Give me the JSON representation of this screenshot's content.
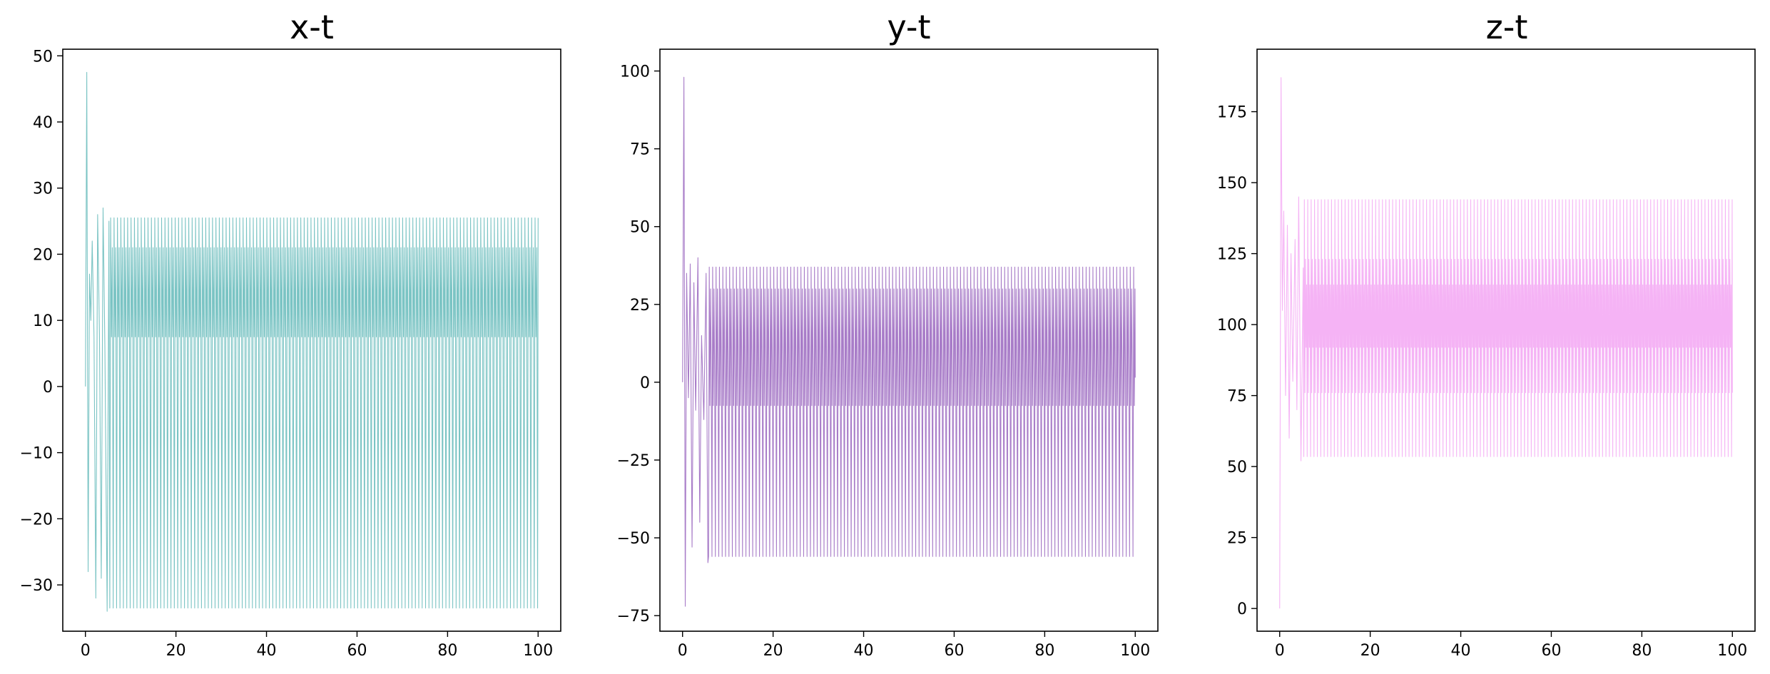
{
  "figure": {
    "panels": [
      {
        "title": "x-t"
      },
      {
        "title": "y-t"
      },
      {
        "title": "z-t"
      }
    ]
  },
  "chart_data": [
    {
      "type": "line",
      "title": "x-t",
      "xlabel": "",
      "ylabel": "",
      "color": "#7bc4c4",
      "xlim": [
        -5,
        105
      ],
      "ylim": [
        -37,
        51
      ],
      "xticks": [
        0,
        20,
        40,
        60,
        80,
        100
      ],
      "yticks": [
        -30,
        -20,
        -10,
        0,
        10,
        20,
        30,
        40,
        50
      ],
      "grid": false,
      "legend": "none",
      "signal": {
        "t_range": [
          0,
          100
        ],
        "transient": [
          [
            0,
            0
          ],
          [
            0.3,
            47.5
          ],
          [
            0.6,
            -28
          ],
          [
            0.9,
            17
          ],
          [
            1.2,
            10
          ],
          [
            1.5,
            22
          ],
          [
            1.9,
            7.5
          ],
          [
            2.3,
            -32
          ],
          [
            2.7,
            26
          ],
          [
            3.1,
            8
          ],
          [
            3.5,
            -29
          ],
          [
            3.9,
            27
          ],
          [
            4.3,
            6
          ],
          [
            4.8,
            -34
          ],
          [
            5.2,
            25
          ]
        ],
        "steady_period": 0.75,
        "steady_levels": [
          -33.5,
          25.5,
          7.5,
          21
        ]
      }
    },
    {
      "type": "line",
      "title": "y-t",
      "xlabel": "",
      "ylabel": "",
      "color": "#a87cc8",
      "xlim": [
        -5,
        105
      ],
      "ylim": [
        -80,
        107
      ],
      "xticks": [
        0,
        20,
        40,
        60,
        80,
        100
      ],
      "yticks": [
        -75,
        -50,
        -25,
        0,
        25,
        50,
        75,
        100
      ],
      "grid": false,
      "legend": "none",
      "signal": {
        "t_range": [
          0,
          100
        ],
        "transient": [
          [
            0,
            0
          ],
          [
            0.3,
            98
          ],
          [
            0.6,
            -72
          ],
          [
            0.9,
            35
          ],
          [
            1.3,
            -5
          ],
          [
            1.7,
            38
          ],
          [
            2.1,
            -53
          ],
          [
            2.5,
            32
          ],
          [
            2.9,
            -9
          ],
          [
            3.4,
            40
          ],
          [
            3.8,
            -45
          ],
          [
            4.2,
            15
          ],
          [
            4.7,
            -12
          ],
          [
            5.2,
            35
          ],
          [
            5.6,
            -58
          ]
        ],
        "steady_period": 0.75,
        "steady_levels": [
          -56,
          37,
          -7.5,
          30,
          1.5
        ]
      }
    },
    {
      "type": "line",
      "title": "z-t",
      "xlabel": "",
      "ylabel": "",
      "color": "#f5b3f5",
      "xlim": [
        -5,
        105
      ],
      "ylim": [
        -8,
        197
      ],
      "xticks": [
        0,
        20,
        40,
        60,
        80,
        100
      ],
      "yticks": [
        0,
        25,
        50,
        75,
        100,
        125,
        150,
        175
      ],
      "grid": false,
      "legend": "none",
      "signal": {
        "t_range": [
          0,
          100
        ],
        "transient": [
          [
            0,
            0
          ],
          [
            0.3,
            187
          ],
          [
            0.6,
            105
          ],
          [
            0.9,
            140
          ],
          [
            1.3,
            75
          ],
          [
            1.7,
            135
          ],
          [
            2.1,
            60
          ],
          [
            2.5,
            125
          ],
          [
            2.9,
            80
          ],
          [
            3.4,
            130
          ],
          [
            3.8,
            70
          ],
          [
            4.2,
            145
          ],
          [
            4.7,
            52
          ],
          [
            5.2,
            120
          ]
        ],
        "steady_period": 0.75,
        "steady_levels": [
          53.5,
          144,
          76,
          123,
          92,
          114
        ]
      }
    }
  ]
}
